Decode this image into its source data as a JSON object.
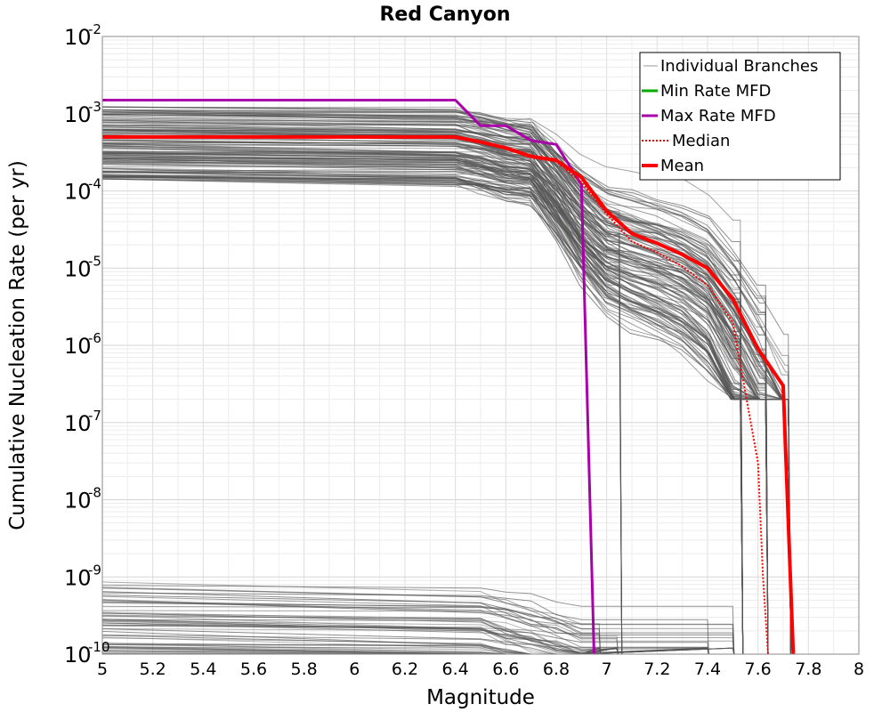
{
  "chart_data": {
    "type": "line",
    "title": "Red Canyon",
    "xlabel": "Magnitude",
    "ylabel": "Cumulative Nucleation Rate (per yr)",
    "xlim": [
      5,
      8
    ],
    "ylim": [
      1e-10,
      0.01
    ],
    "y_scale": "log",
    "grid": true,
    "legend_position": "top-right",
    "x_ticks": [
      "5",
      "5.2",
      "5.4",
      "5.6",
      "5.8",
      "6",
      "6.2",
      "6.4",
      "6.6",
      "6.8",
      "7",
      "7.2",
      "7.4",
      "7.6",
      "7.8",
      "8"
    ],
    "y_ticks": [
      {
        "base": "10",
        "exp": "-10",
        "value": 1e-10
      },
      {
        "base": "10",
        "exp": "-9",
        "value": 1e-09
      },
      {
        "base": "10",
        "exp": "-8",
        "value": 1e-08
      },
      {
        "base": "10",
        "exp": "-7",
        "value": 1e-07
      },
      {
        "base": "10",
        "exp": "-6",
        "value": 1e-06
      },
      {
        "base": "10",
        "exp": "-5",
        "value": 1e-05
      },
      {
        "base": "10",
        "exp": "-4",
        "value": 0.0001
      },
      {
        "base": "10",
        "exp": "-3",
        "value": 0.001
      },
      {
        "base": "10",
        "exp": "-2",
        "value": 0.01
      }
    ],
    "colors": {
      "branches": "#555555",
      "min_rate": "#00aa00",
      "max_rate": "#aa00aa",
      "median": "#ff0000",
      "mean": "#ff0000"
    },
    "legend": [
      {
        "label": "Individual Branches",
        "style": "thin"
      },
      {
        "label": "Min Rate MFD",
        "style": "green"
      },
      {
        "label": "Max Rate MFD",
        "style": "purple"
      },
      {
        "label": "Median",
        "style": "dotted-red"
      },
      {
        "label": "Mean",
        "style": "thick-red"
      }
    ],
    "series": [
      {
        "name": "Max Rate MFD",
        "x": [
          5.0,
          6.4,
          6.5,
          6.6,
          6.7,
          6.8,
          6.9,
          6.95
        ],
        "y": [
          0.0015,
          0.0015,
          0.0007,
          0.0007,
          0.00045,
          0.0004,
          0.00012,
          1e-10
        ]
      },
      {
        "name": "Median",
        "x": [
          5.0,
          6.4,
          6.5,
          6.6,
          6.7,
          6.8,
          6.9,
          7.0,
          7.1,
          7.2,
          7.3,
          7.4,
          7.5,
          7.6,
          7.62,
          7.64
        ],
        "y": [
          0.0005,
          0.0005,
          0.00042,
          0.00035,
          0.00027,
          0.00024,
          0.00013,
          5e-05,
          2.2e-05,
          1.6e-05,
          1.05e-05,
          6e-06,
          2e-06,
          3e-08,
          1e-09,
          1e-10
        ]
      },
      {
        "name": "Mean",
        "x": [
          5.0,
          6.4,
          6.5,
          6.6,
          6.7,
          6.8,
          6.9,
          7.0,
          7.1,
          7.2,
          7.3,
          7.4,
          7.5,
          7.6,
          7.7,
          7.74
        ],
        "y": [
          0.0005,
          0.0005,
          0.00043,
          0.00036,
          0.00028,
          0.00025,
          0.00015,
          5.5e-05,
          2.8e-05,
          2.1e-05,
          1.5e-05,
          1e-05,
          4e-06,
          9e-07,
          3e-07,
          1e-10
        ]
      }
    ]
  }
}
